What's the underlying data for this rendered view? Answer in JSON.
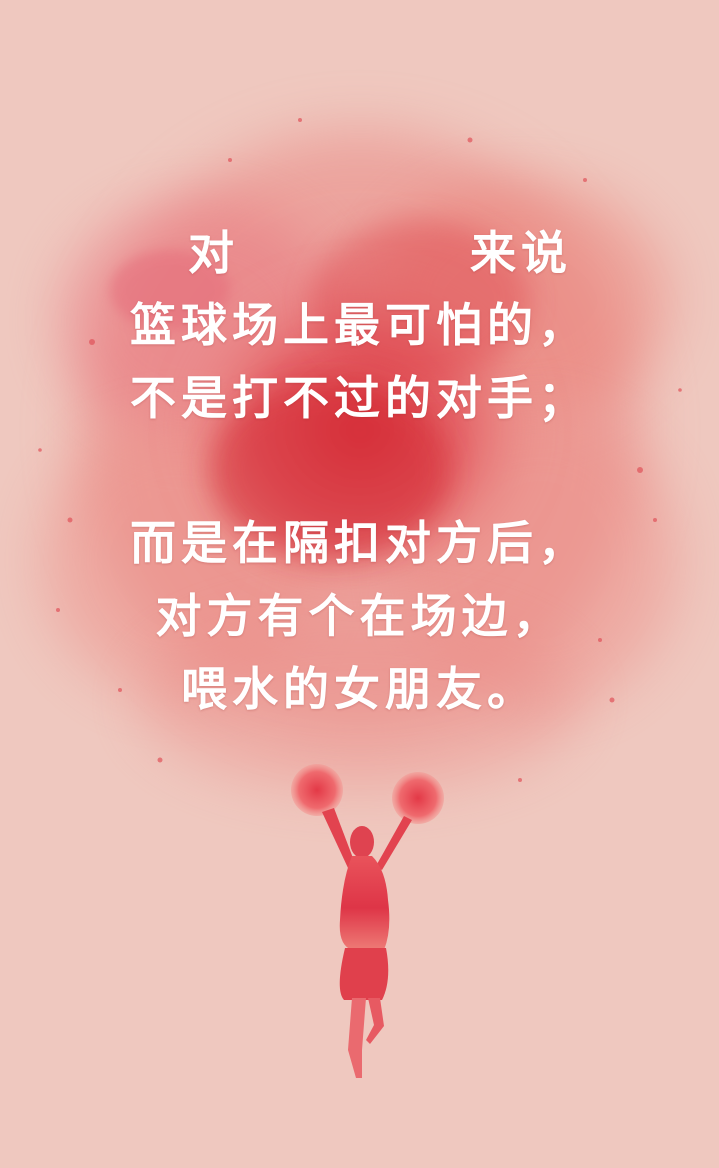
{
  "poster": {
    "colors": {
      "background": "#efc8bf",
      "splash": "#e0474c",
      "text": "#ffffff"
    },
    "title_line": {
      "left": "对",
      "right": "来说"
    },
    "lines": [
      "篮球场上最可怕的，",
      "不是打不过的对手；",
      "而是在隔扣对方后，",
      "对方有个在场边，",
      "喂水的女朋友。"
    ],
    "icons": {
      "cheerleader": "cheerleader-silhouette-icon"
    }
  }
}
